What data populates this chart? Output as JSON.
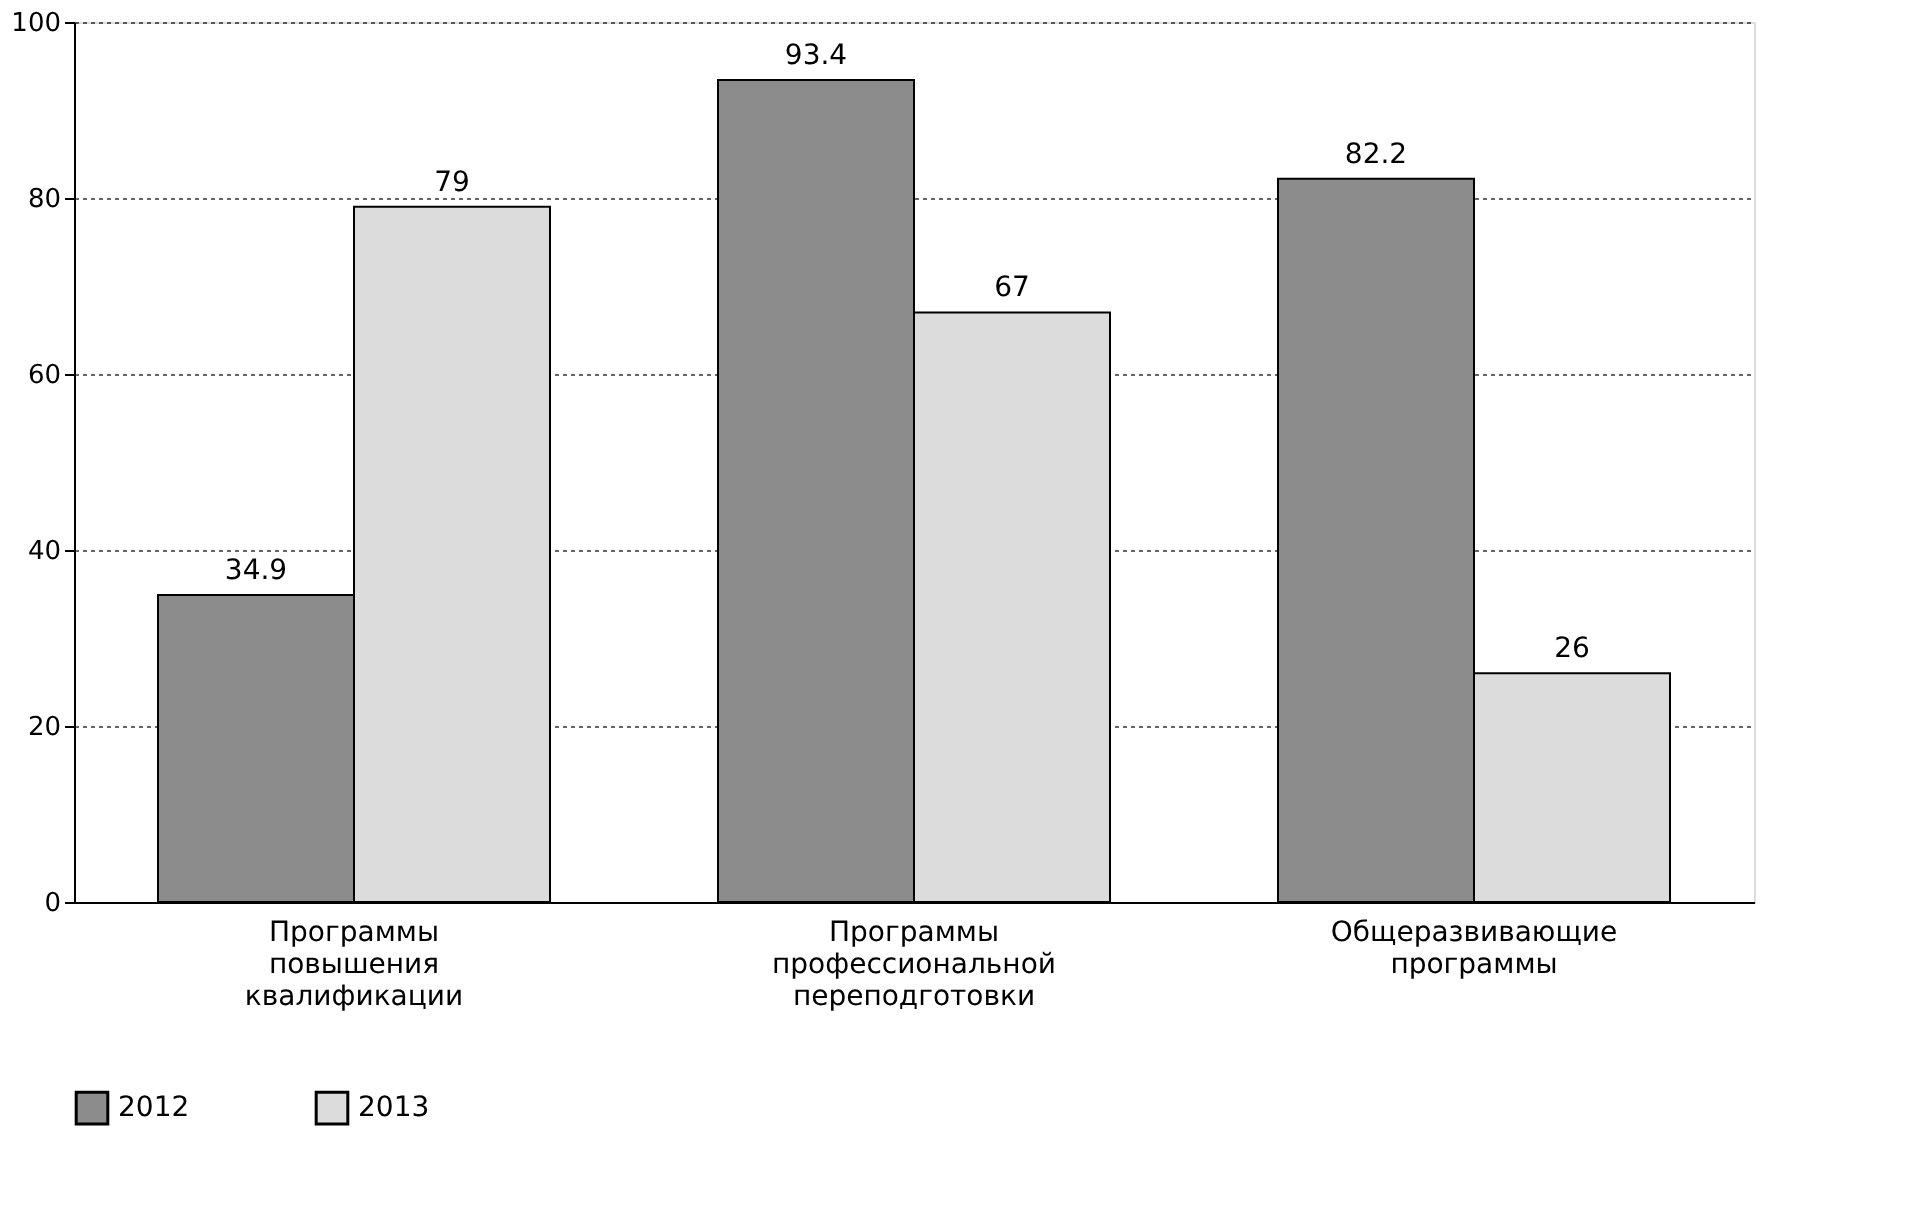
{
  "chart_data": {
    "type": "bar",
    "categories": [
      "Программы повышения квалификации",
      "Программы профессиональной переподготовки",
      "Общеразвивающие программы"
    ],
    "series": [
      {
        "name": "2012",
        "color": "#8c8c8c",
        "values": [
          34.9,
          93.4,
          82.2
        ]
      },
      {
        "name": "2013",
        "color": "#dcdcdc",
        "values": [
          79,
          67,
          26
        ]
      }
    ],
    "ylim": [
      0,
      100
    ],
    "yticks": [
      0,
      20,
      40,
      60,
      80,
      100
    ],
    "grid": "y",
    "legend": "bottom",
    "data_labels": true
  }
}
